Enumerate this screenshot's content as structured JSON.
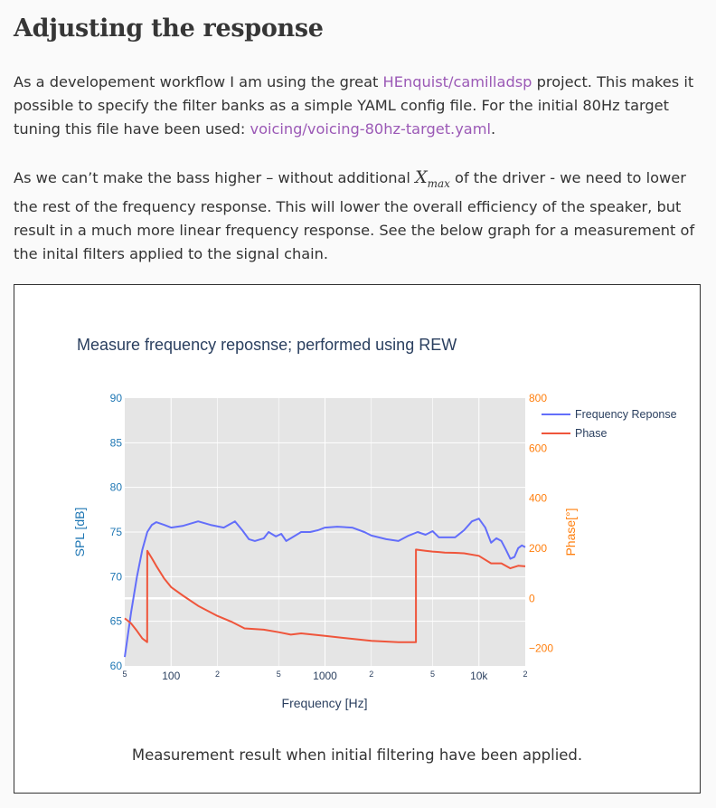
{
  "heading": "Adjusting the response",
  "paragraph1": {
    "part1": "As a developement workflow I am using the great ",
    "link1": "HEnquist/camilladsp",
    "part2": " project. This makes it possible to specify the filter banks as a simple YAML config file. For the initial 80Hz target tuning this file have been used: ",
    "link2": "voicing/voicing-80hz-target.yaml",
    "part3": "."
  },
  "paragraph2": {
    "part1": "As we can’t make the bass higher – without additional ",
    "math_main": "X",
    "math_sub": "max",
    "part2": " of the driver - we need to lower the rest of the frequency response. This will lower the overall efficiency of the speaker, but result in a much more linear frequency response. See the below graph for a measurement of the inital filters applied to the signal chain."
  },
  "caption": "Measurement result when initial filtering have been applied.",
  "colors": {
    "freq_series": "#636efa",
    "phase_series": "#ef553b",
    "left_axis": "#1f77b4",
    "right_axis": "#ff7f0e",
    "plot_bg": "#e5e5e5",
    "link": "#9b59b6"
  },
  "chart_data": {
    "type": "line",
    "title": "Measure frequency reposnse; performed using REW",
    "xlabel": "Frequency [Hz]",
    "x_scale": "log",
    "xlim": [
      50,
      20000
    ],
    "x_ticks": [
      {
        "value": 50,
        "label": "5",
        "minor": true
      },
      {
        "value": 100,
        "label": "100",
        "minor": false
      },
      {
        "value": 200,
        "label": "2",
        "minor": true
      },
      {
        "value": 500,
        "label": "5",
        "minor": true
      },
      {
        "value": 1000,
        "label": "1000",
        "minor": false
      },
      {
        "value": 2000,
        "label": "2",
        "minor": true
      },
      {
        "value": 5000,
        "label": "5",
        "minor": true
      },
      {
        "value": 10000,
        "label": "10k",
        "minor": false
      },
      {
        "value": 20000,
        "label": "2",
        "minor": true
      }
    ],
    "ylabel": "SPL [dB]",
    "ylim": [
      60,
      90
    ],
    "y_ticks": [
      "60",
      "65",
      "70",
      "75",
      "80",
      "85",
      "90"
    ],
    "y2label": "Phase[°]",
    "y2lim": [
      -270,
      800
    ],
    "y2_ticks": [
      "−200",
      "0",
      "200",
      "400",
      "600",
      "800"
    ],
    "y2_tick_values": [
      -200,
      0,
      200,
      400,
      600,
      800
    ],
    "grid": true,
    "legend_position": "top-right",
    "series": [
      {
        "name": "Frequency Reponse",
        "axis": "left",
        "x": [
          50,
          55,
          60,
          65,
          70,
          75,
          80,
          90,
          100,
          120,
          150,
          180,
          220,
          260,
          290,
          320,
          350,
          400,
          430,
          480,
          520,
          560,
          600,
          700,
          800,
          900,
          1000,
          1200,
          1500,
          1800,
          2000,
          2500,
          3000,
          3500,
          4000,
          4500,
          5000,
          5500,
          6000,
          7000,
          8000,
          9000,
          10000,
          11000,
          12000,
          13000,
          14000,
          15000,
          16000,
          17000,
          18000,
          19000,
          20000
        ],
        "values": [
          61,
          66,
          70,
          73,
          75,
          75.8,
          76.1,
          75.8,
          75.5,
          75.7,
          76.2,
          75.8,
          75.5,
          76.2,
          75.2,
          74.2,
          74,
          74.3,
          75,
          74.5,
          74.8,
          74,
          74.3,
          75,
          75,
          75.2,
          75.5,
          75.6,
          75.5,
          75,
          74.6,
          74.2,
          74,
          74.6,
          75,
          74.7,
          75.1,
          74.4,
          74.4,
          74.4,
          75.2,
          76.2,
          76.5,
          75.5,
          73.8,
          74.3,
          74,
          73,
          72,
          72.2,
          73.2,
          73.5,
          73.3
        ]
      },
      {
        "name": "Phase",
        "axis": "right",
        "x": [
          50,
          55,
          60,
          65,
          69.9,
          70,
          75,
          80,
          90,
          100,
          120,
          150,
          200,
          250,
          300,
          400,
          500,
          600,
          700,
          1000,
          2000,
          3000,
          3900,
          3901,
          4500,
          5000,
          5500,
          6000,
          7000,
          8000,
          10000,
          12000,
          14000,
          16000,
          18000,
          20000
        ],
        "values": [
          -80,
          -100,
          -130,
          -160,
          -175,
          190,
          160,
          130,
          80,
          45,
          10,
          -30,
          -70,
          -95,
          -120,
          -125,
          -135,
          -145,
          -140,
          -150,
          -170,
          -175,
          -175,
          195,
          190,
          187,
          185,
          183,
          182,
          180,
          170,
          140,
          140,
          120,
          130,
          128
        ]
      }
    ]
  }
}
